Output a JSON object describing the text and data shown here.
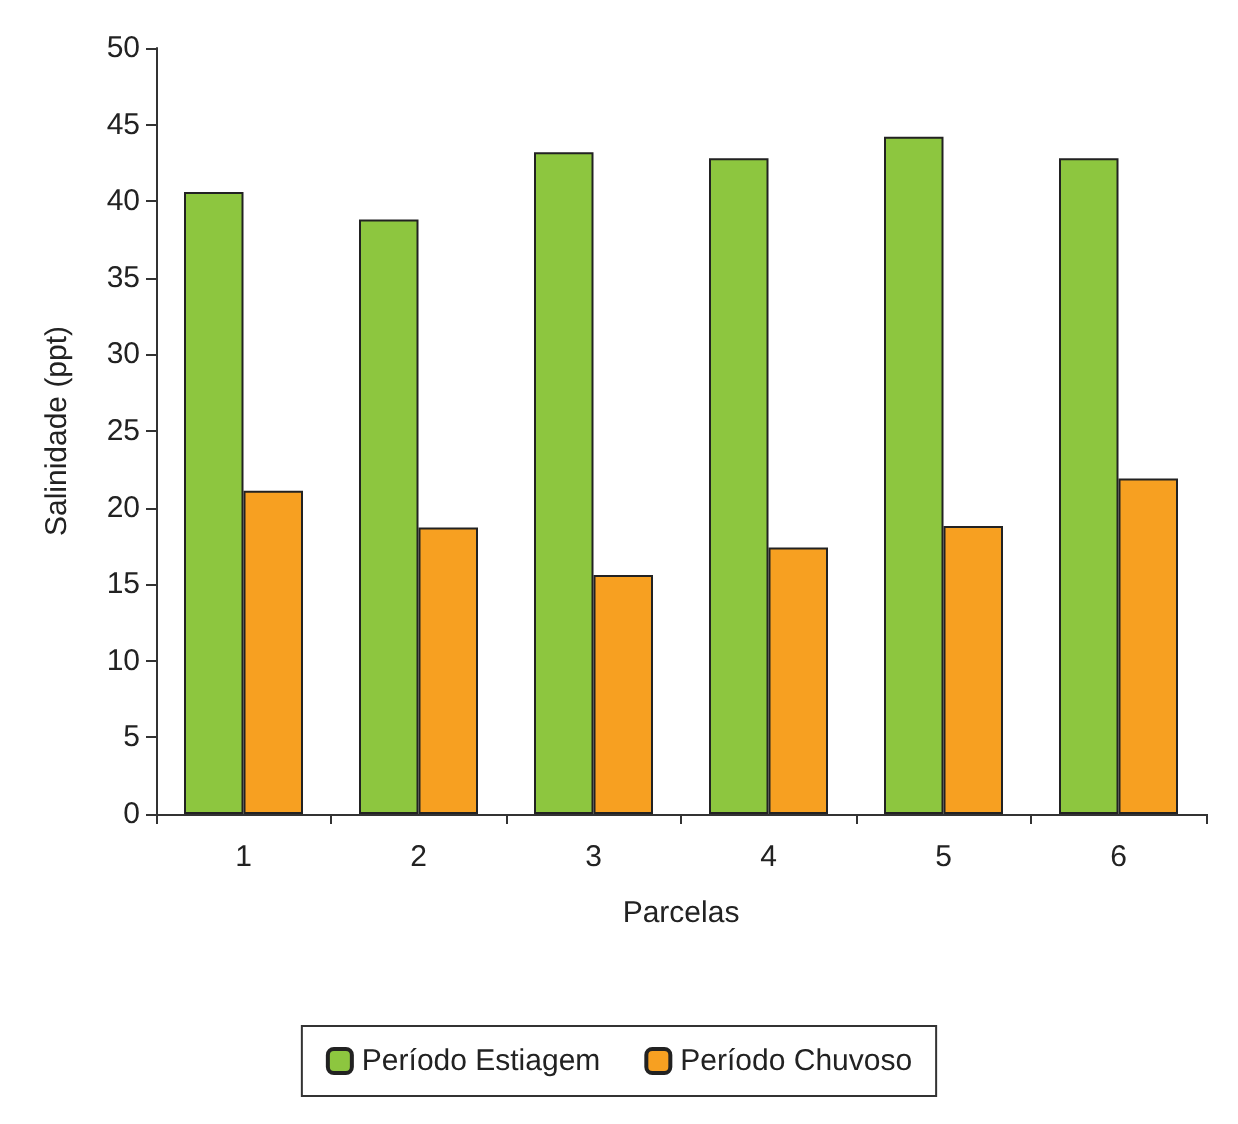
{
  "chart_data": {
    "type": "bar",
    "xlabel": "Parcelas",
    "ylabel": "Salinidade (ppt)",
    "categories": [
      "1",
      "2",
      "3",
      "4",
      "5",
      "6"
    ],
    "series": [
      {
        "name": "Período Estiagem",
        "color": "#8dc63f",
        "values": [
          40.6,
          38.8,
          43.2,
          42.8,
          44.2,
          42.8
        ]
      },
      {
        "name": "Período Chuvoso",
        "color": "#f7a021",
        "values": [
          21.1,
          18.7,
          15.6,
          17.4,
          18.8,
          21.9
        ]
      }
    ],
    "ylim": [
      0,
      50
    ],
    "yticks": [
      0,
      5,
      10,
      15,
      20,
      25,
      30,
      35,
      40,
      45,
      50
    ],
    "grid": false,
    "legend": "bottom"
  }
}
